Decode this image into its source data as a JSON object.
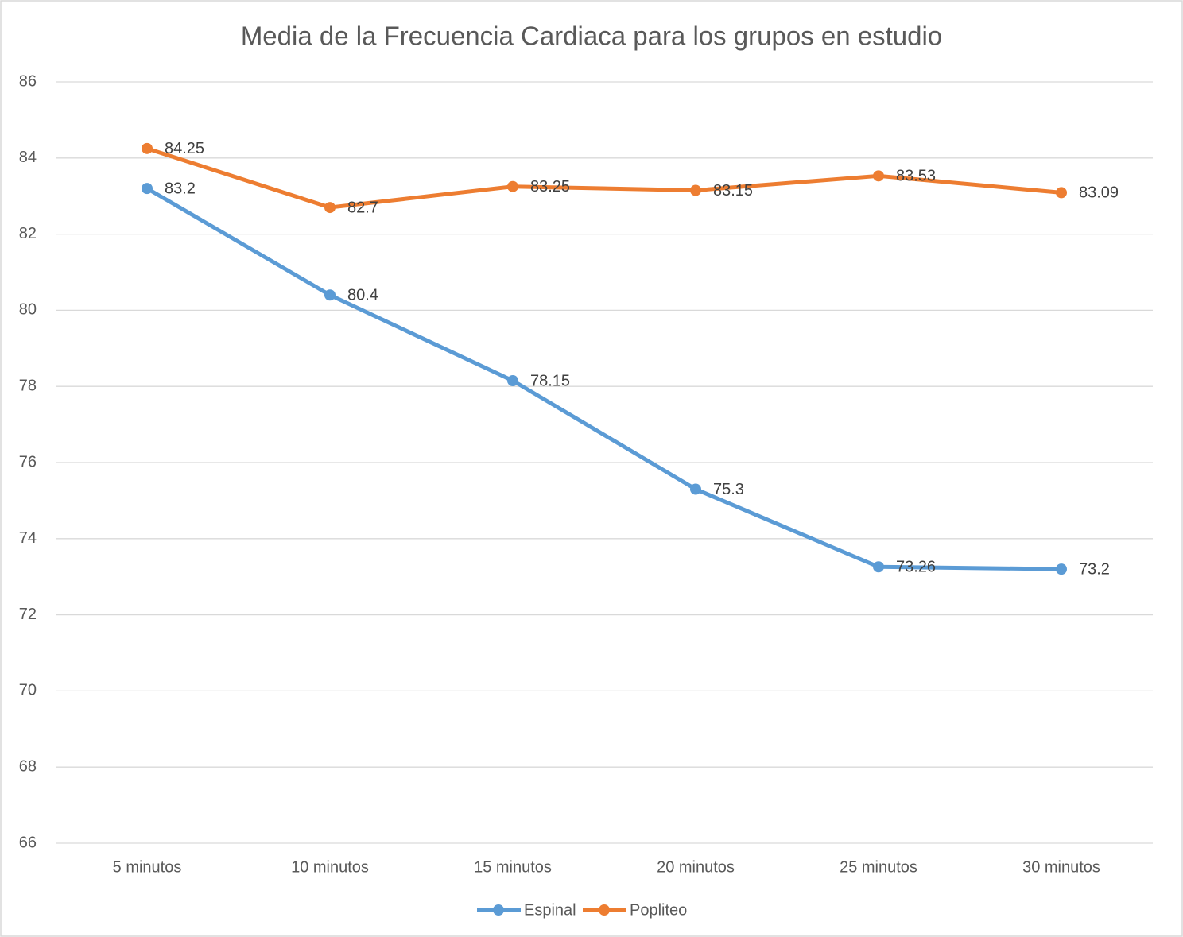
{
  "chart_data": {
    "type": "line",
    "title": "Media de la Frecuencia Cardiaca para los grupos en estudio",
    "categories": [
      "5 minutos",
      "10 minutos",
      "15 minutos",
      "20 minutos",
      "25 minutos",
      "30 minutos"
    ],
    "series": [
      {
        "name": "Espinal",
        "color": "#5b9bd5",
        "values": [
          83.2,
          80.4,
          78.15,
          75.3,
          73.26,
          73.2
        ]
      },
      {
        "name": "Popliteo",
        "color": "#ed7d31",
        "values": [
          84.25,
          82.7,
          83.25,
          83.15,
          83.53,
          83.09
        ]
      }
    ],
    "ylim": [
      66,
      86
    ],
    "yticks": [
      66,
      68,
      70,
      72,
      74,
      76,
      78,
      80,
      82,
      84,
      86
    ],
    "grid": true,
    "legend": "bottom"
  }
}
